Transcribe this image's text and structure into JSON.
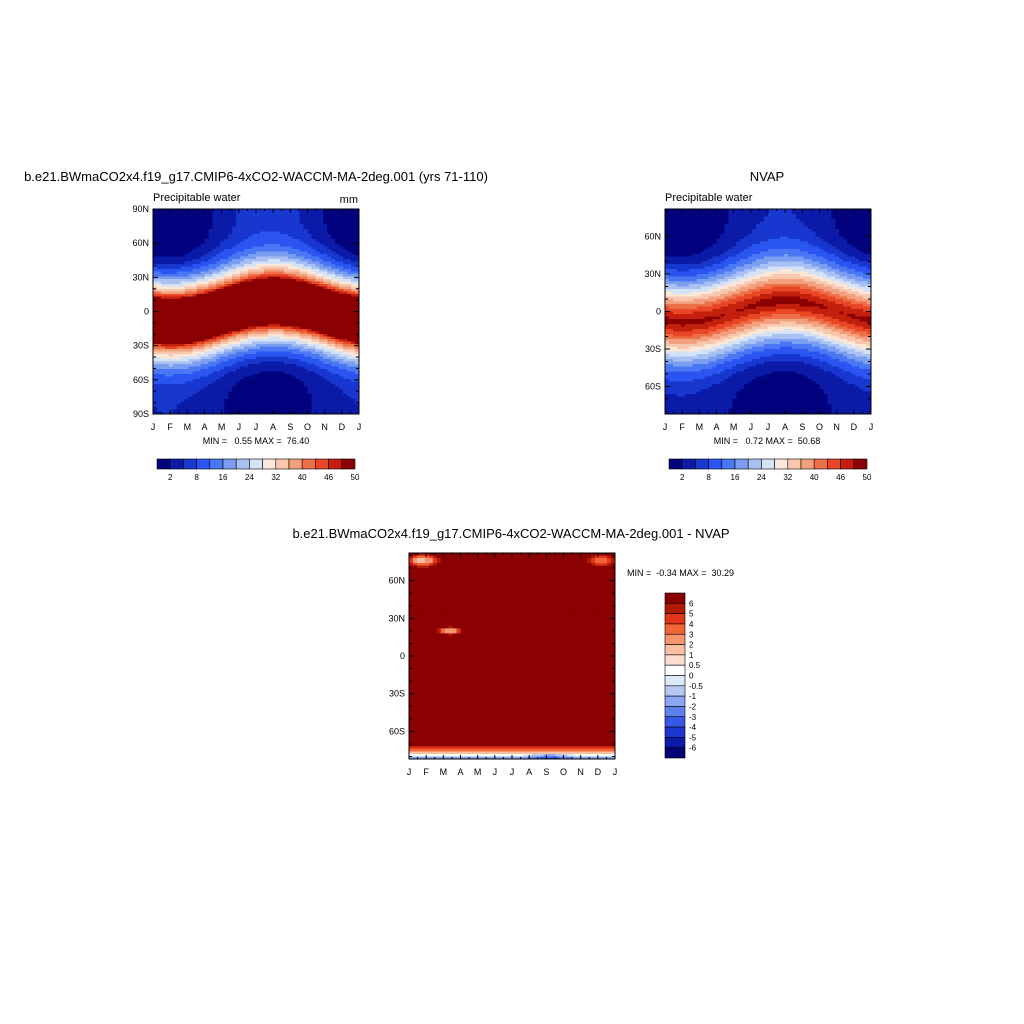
{
  "chart_data": [
    {
      "type": "heatmap",
      "title": "b.e21.BWmaCO2x4.f19_g17.CMIP6-4xCO2-WACCM-MA-2deg.001 (yrs 71-110)",
      "subtitle": "Precipitable water",
      "units": "mm",
      "x_ticks": [
        "J",
        "F",
        "M",
        "A",
        "M",
        "J",
        "J",
        "A",
        "S",
        "O",
        "N",
        "D",
        "J"
      ],
      "y_ticks": [
        "90N",
        "60N",
        "30N",
        "0",
        "30S",
        "60S",
        "90S"
      ],
      "ylim": [
        -90,
        90
      ],
      "stats_text": "MIN =   0.55 MAX =  76.40",
      "min": 0.55,
      "max": 76.4,
      "colorbar": {
        "orientation": "horizontal",
        "levels": [
          2,
          5,
          8,
          12,
          16,
          20,
          24,
          28,
          32,
          36,
          40,
          43,
          46,
          48,
          50
        ],
        "labels": [
          "2",
          "8",
          "16",
          "24",
          "32",
          "40",
          "46",
          "50"
        ]
      }
    },
    {
      "type": "heatmap",
      "title": "NVAP",
      "subtitle": "Precipitable water",
      "x_ticks": [
        "J",
        "F",
        "M",
        "A",
        "M",
        "J",
        "J",
        "A",
        "S",
        "O",
        "N",
        "D",
        "J"
      ],
      "y_ticks": [
        "60N",
        "30N",
        "0",
        "30S",
        "60S"
      ],
      "ylim": [
        -82,
        82
      ],
      "stats_text": "MIN =   0.72 MAX =  50.68",
      "min": 0.72,
      "max": 50.68,
      "colorbar": {
        "orientation": "horizontal",
        "levels": [
          2,
          5,
          8,
          12,
          16,
          20,
          24,
          28,
          32,
          36,
          40,
          43,
          46,
          48,
          50
        ],
        "labels": [
          "2",
          "8",
          "16",
          "24",
          "32",
          "40",
          "46",
          "50"
        ]
      }
    },
    {
      "type": "heatmap",
      "title": "b.e21.BWmaCO2x4.f19_g17.CMIP6-4xCO2-WACCM-MA-2deg.001 - NVAP",
      "x_ticks": [
        "J",
        "F",
        "M",
        "A",
        "M",
        "J",
        "J",
        "A",
        "S",
        "O",
        "N",
        "D",
        "J"
      ],
      "y_ticks": [
        "60N",
        "30N",
        "0",
        "30S",
        "60S"
      ],
      "ylim": [
        -82,
        82
      ],
      "stats_text": "MIN =  -0.34 MAX =  30.29",
      "min": -0.34,
      "max": 30.29,
      "colorbar": {
        "orientation": "vertical",
        "labels": [
          "6",
          "5",
          "4",
          "3",
          "2",
          "1",
          "0.5",
          "0",
          "-0.5",
          "-1",
          "-2",
          "-3",
          "-4",
          "-5",
          "-6"
        ]
      }
    }
  ],
  "palettes": {
    "sequential": [
      "#02027e",
      "#0b1ba8",
      "#1737cf",
      "#2a55f0",
      "#4a78f5",
      "#7c9ef0",
      "#a9c0f3",
      "#d3e2f6",
      "#fbe7d8",
      "#f8c7ae",
      "#f3a07e",
      "#ee7048",
      "#e84624",
      "#c4200e",
      "#8b0000"
    ],
    "difference_desc": [
      "#8b0000",
      "#b01a06",
      "#e3351c",
      "#f26536",
      "#f59570",
      "#f8bfa2",
      "#fcddd0",
      "#ffffff",
      "#dce9f6",
      "#b3c9f4",
      "#8aa8f2",
      "#5d82ee",
      "#3659e8",
      "#1d37d0",
      "#0c1aa8",
      "#020276"
    ]
  }
}
